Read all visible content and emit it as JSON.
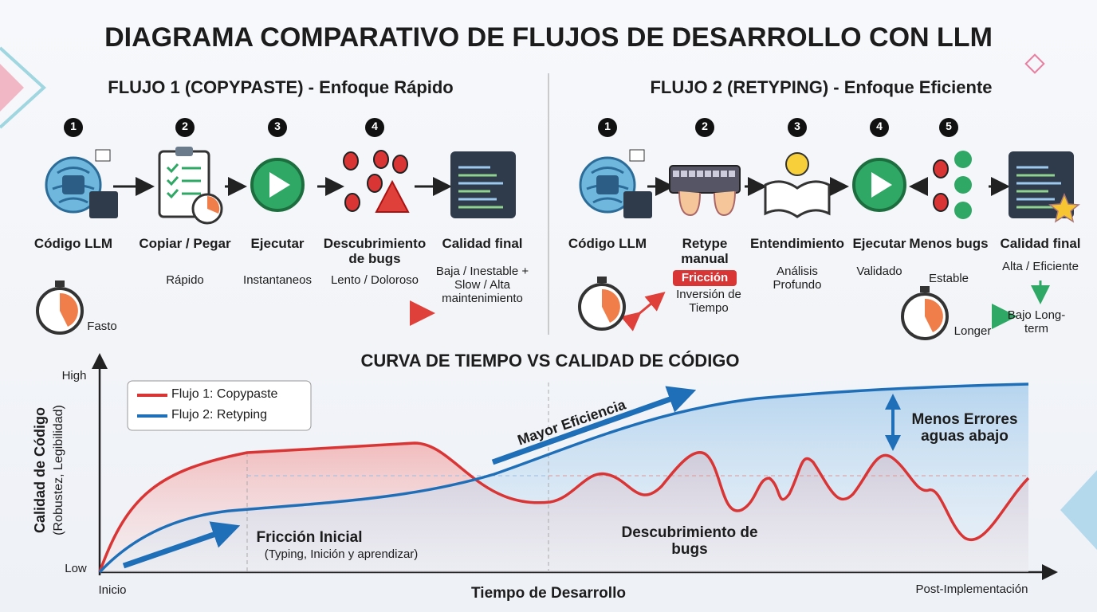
{
  "title": "DIAGRAMA COMPARATIVO DE FLUJOS DE DESARROLLO CON LLM",
  "flow1": {
    "title": "FLUJO 1 (COPYPASTE) - Enfoque Rápido",
    "steps": [
      {
        "number": "1",
        "label": "Código LLM"
      },
      {
        "number": "2",
        "label": "Copiar / Pegar",
        "note": "Rápido"
      },
      {
        "number": "3",
        "label": "Ejecutar",
        "note": "Instantaneos"
      },
      {
        "number": "4",
        "label": "Descubrimiento de bugs",
        "note": "Lento / Doloroso"
      },
      {
        "label": "Calidad final",
        "note": "Baja / Inestable + Slow / Alta maintenimiento"
      }
    ],
    "timer_label": "Fasto"
  },
  "flow2": {
    "title": "FLUJO 2 (RETYPING) - Enfoque Eficiente",
    "steps": [
      {
        "number": "1",
        "label": "Código LLM"
      },
      {
        "number": "2",
        "label": "Retype manual",
        "badge": "Fricción",
        "note": "Inversión de Tiempo"
      },
      {
        "number": "3",
        "label": "Entendimiento",
        "note": "Análisis Profundo"
      },
      {
        "number": "4",
        "label": "Ejecutar",
        "note": "Validado"
      },
      {
        "number": "5",
        "label": "Menos bugs",
        "note": "Estable"
      },
      {
        "label": "Calidad final",
        "note": "Alta / Eficiente"
      }
    ],
    "timer_label": "Longer",
    "result": "Bajo Long-term"
  },
  "curve": {
    "title": "CURVA DE TIEMPO VS CALIDAD DE CÓDIGO",
    "y_label": "Calidad de Código",
    "y_sublabel": "(Robustez, Legibilidad)",
    "y_high": "High",
    "y_low": "Low",
    "x_label": "Tiempo de Desarrollo",
    "x_start": "Inicio",
    "x_end": "Post-Implementación",
    "legend": [
      "Flujo 1: Copypaste",
      "Flujo 2: Retyping"
    ],
    "annotations": {
      "efficiency": "Mayor Eficiencia",
      "fewer_errors": "Menos Errores aguas abajo",
      "friction": "Fricción Inicial",
      "friction_detail": "(Typing, Inición y aprendizar)",
      "bugs": "Descubrimiento de bugs"
    }
  }
}
